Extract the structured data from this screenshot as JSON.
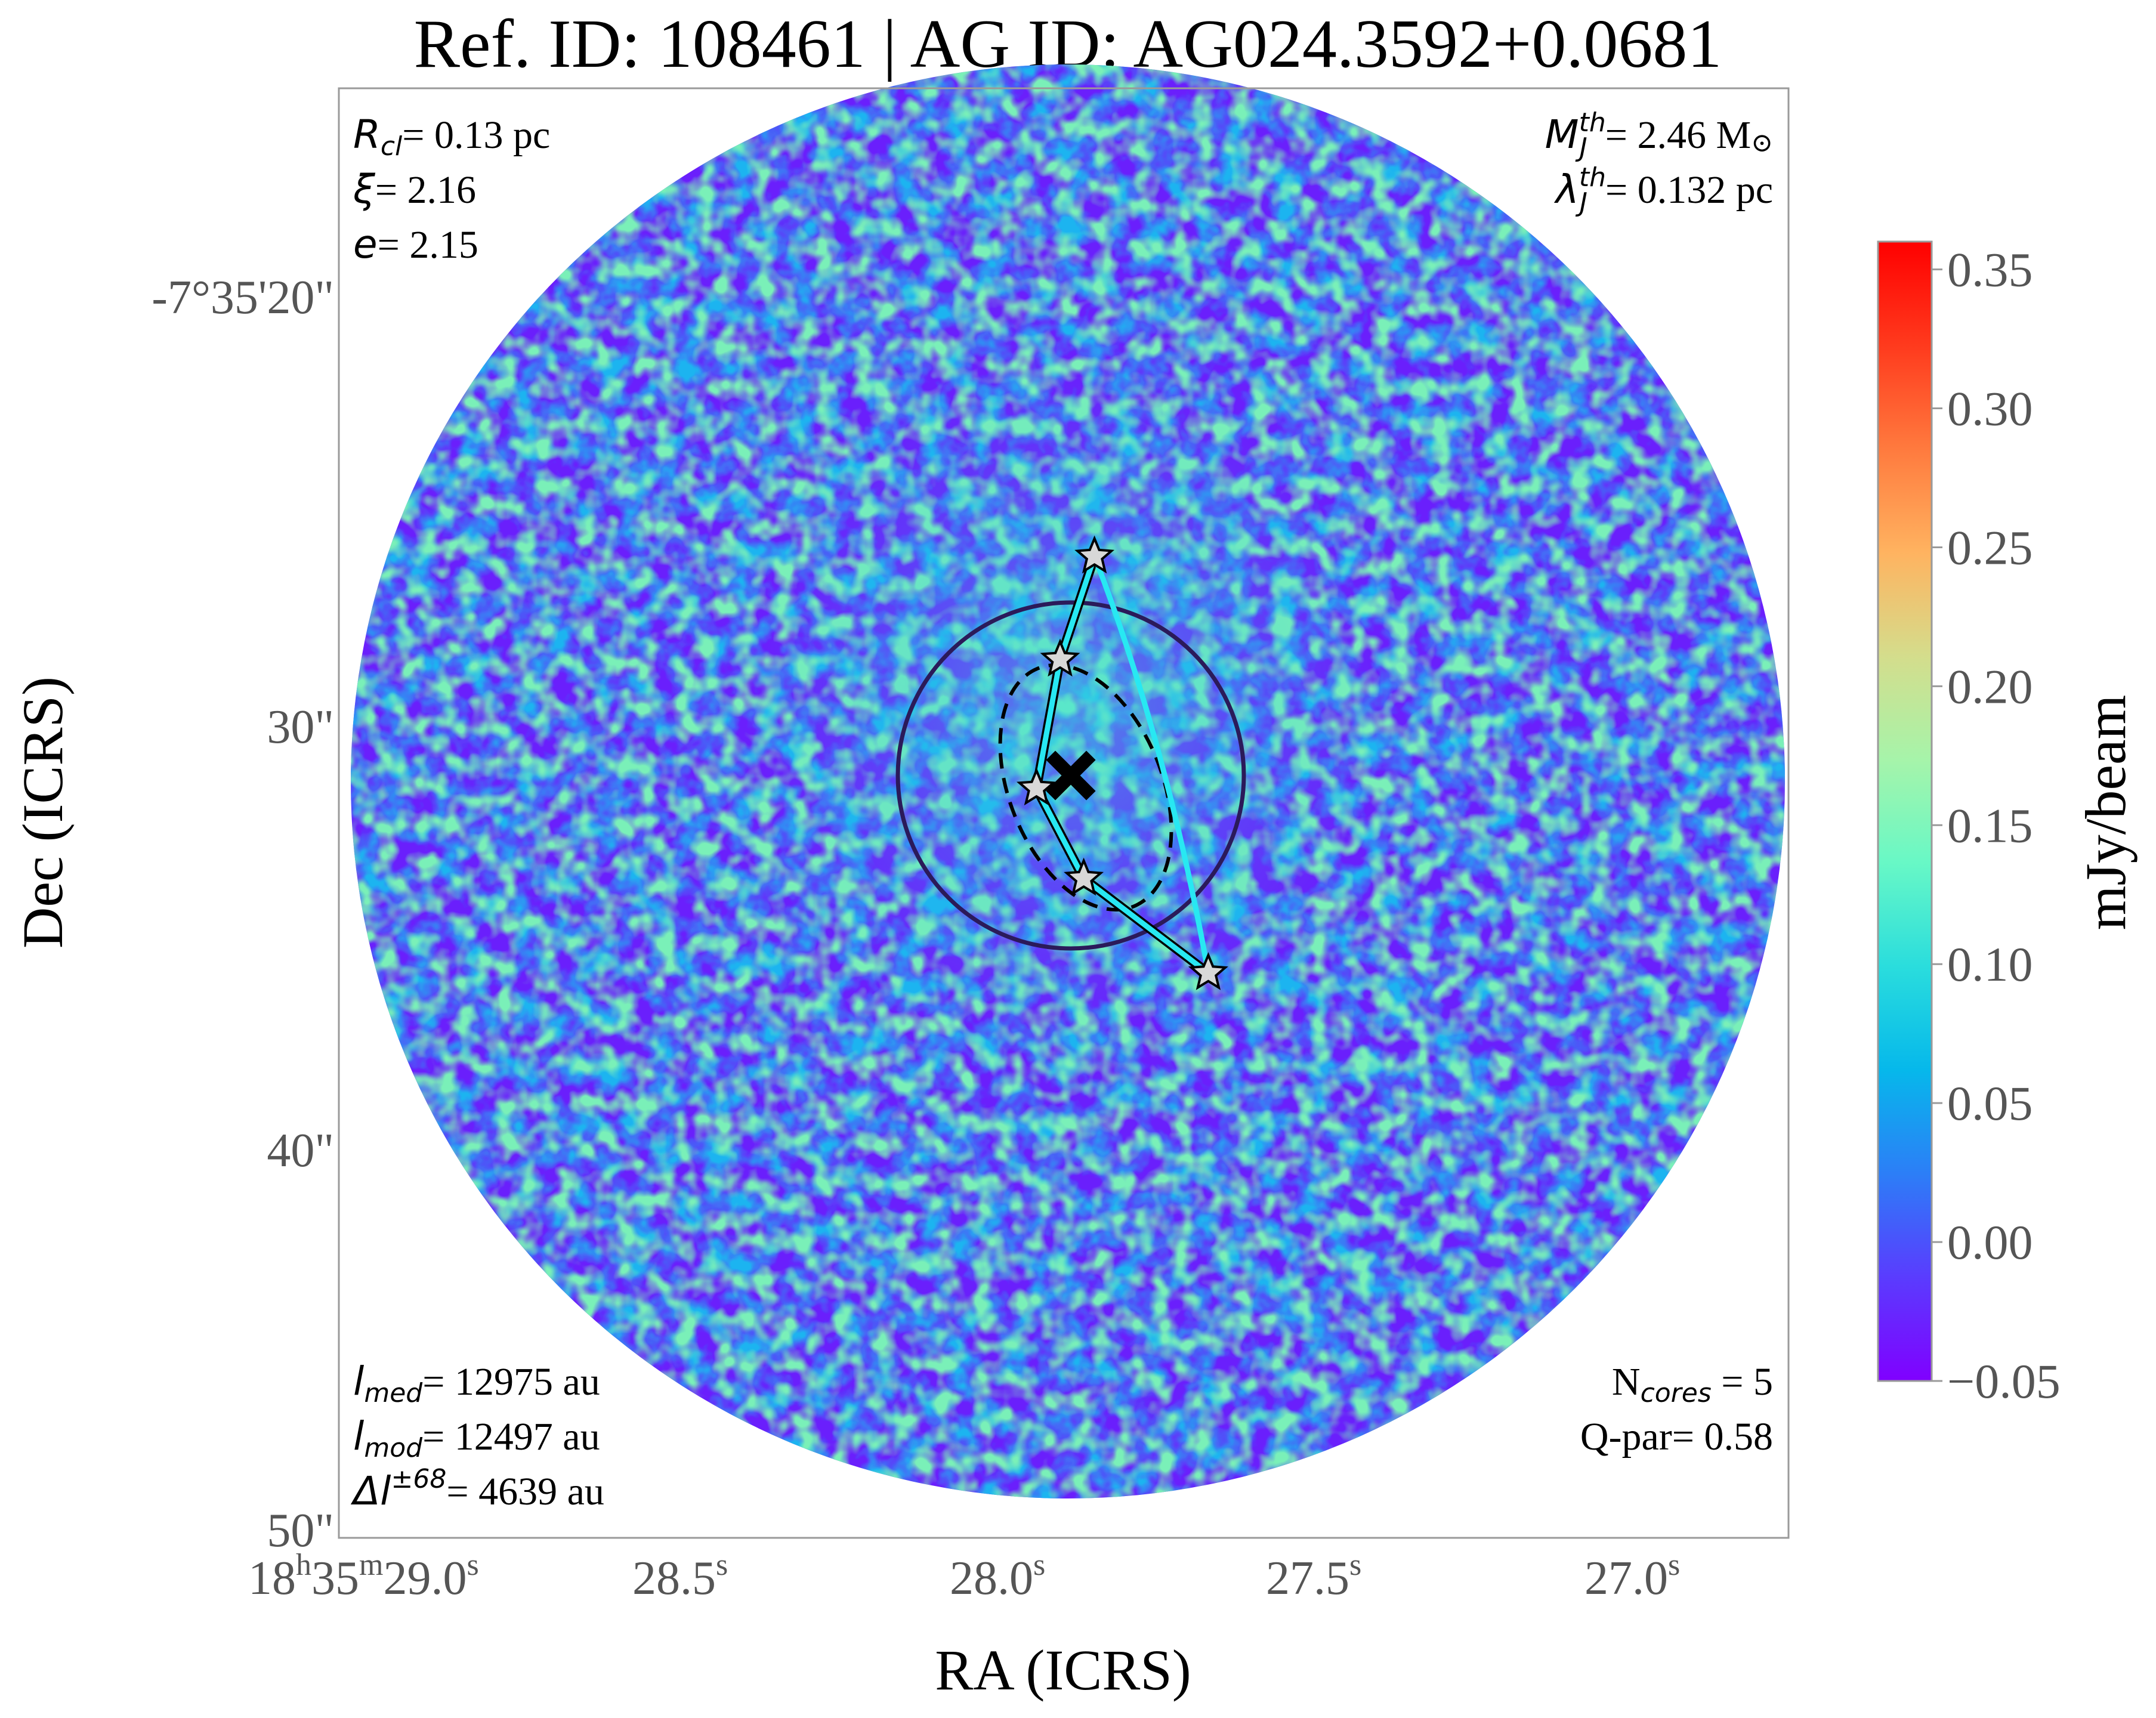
{
  "title": "Ref. ID: 108461 | AG ID: AG024.3592+0.0681",
  "xlabel": "RA (ICRS)",
  "ylabel": "Dec (ICRS)",
  "x_ticks": [
    {
      "label": "18h35m29.0s",
      "parts": [
        "18",
        "h",
        "35",
        "m",
        "29.0",
        "s"
      ]
    },
    {
      "label": "28.5s",
      "parts": [
        "28.5",
        "s"
      ]
    },
    {
      "label": "28.0s",
      "parts": [
        "28.0",
        "s"
      ]
    },
    {
      "label": "27.5s",
      "parts": [
        "27.5",
        "s"
      ]
    },
    {
      "label": "27.0s",
      "parts": [
        "27.0",
        "s"
      ]
    }
  ],
  "y_ticks": [
    "-7°35'20\"",
    "30\"",
    "40\"",
    "50\""
  ],
  "annotations": {
    "r_cl": {
      "sym": "R",
      "sub": "cl",
      "text": "= 0.13 pc"
    },
    "xi": {
      "sym": "ξ",
      "text": "= 2.16"
    },
    "e": {
      "sym": "e",
      "text": "= 2.15"
    },
    "mj": {
      "sym": "M",
      "sup": "th",
      "sub": "J",
      "text": "= 2.46 M",
      "unit": "⊙"
    },
    "lj": {
      "sym": "λ",
      "sup": "th",
      "sub": "J",
      "text": "= 0.132 pc"
    },
    "l_med": {
      "sym": "l",
      "sub": "med",
      "text": "= 12975 au"
    },
    "l_mod": {
      "sym": "l",
      "sub": "mod",
      "text": "= 12497 au"
    },
    "delta_l": {
      "sym": "Δl",
      "sup": "±68",
      "text": "= 4639 au"
    },
    "n_cores": {
      "pre": "N",
      "sub": "cores",
      "text": " = 5"
    },
    "q_par": {
      "text": "Q-par= 0.58"
    }
  },
  "colorbar": {
    "label": "mJy/beam",
    "ticks": [
      "0.35",
      "0.30",
      "0.25",
      "0.20",
      "0.15",
      "0.10",
      "0.05",
      "0.00",
      "−0.05"
    ],
    "range": [
      -0.05,
      0.36
    ],
    "colormap": "rainbow",
    "colors": [
      "#8000ff",
      "#5a3cfe",
      "#2c7ef7",
      "#06b8eb",
      "#2adddd",
      "#68f8c6",
      "#a6f4aa",
      "#d4dd8c",
      "#ffb360",
      "#ff7a3e",
      "#ff3a1d",
      "#ff0000"
    ]
  },
  "chart_data": {
    "type": "heatmap",
    "title": "Ref. ID: 108461 | AG ID: AG024.3592+0.0681",
    "xlabel": "RA (ICRS)",
    "ylabel": "Dec (ICRS)",
    "colorbar_label": "mJy/beam",
    "value_range": [
      -0.05,
      0.36
    ],
    "cores_ra_offset_arcsec": [
      0.55,
      -0.25,
      -0.8,
      0.3,
      3.2
    ],
    "cores_dec_offset_arcsec": [
      -5.1,
      -2.7,
      0.3,
      2.4,
      4.6
    ],
    "core_marker_color": "#d8d8d8",
    "mst_edge_color": "#28e8f2",
    "clump_center_color": "#000000",
    "circle_color": "#2b1a5a"
  }
}
